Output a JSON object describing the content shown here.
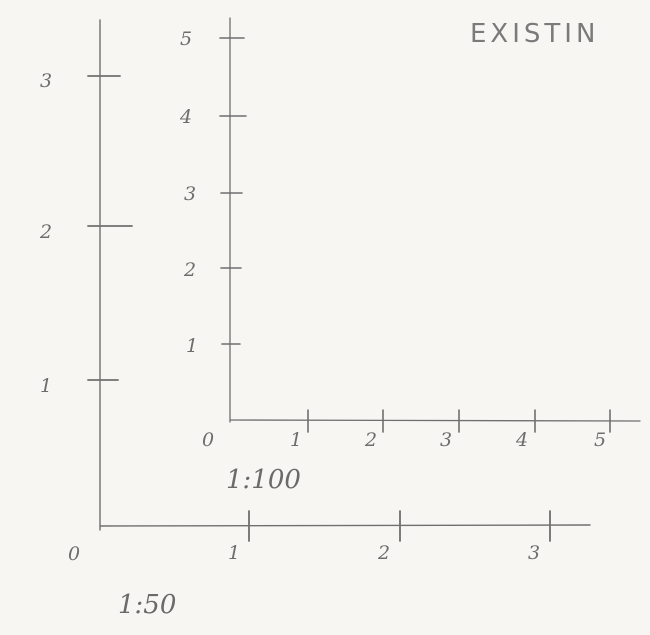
{
  "title": "EXISTIN",
  "scale_50": {
    "label": "1:50",
    "origin": "0",
    "x_ticks": [
      "1",
      "2",
      "3"
    ],
    "y_ticks": [
      "1",
      "2",
      "3"
    ]
  },
  "scale_100": {
    "label": "1:100",
    "origin": "0",
    "x_ticks": [
      "1",
      "2",
      "3",
      "4",
      "5"
    ],
    "y_ticks": [
      "1",
      "2",
      "3",
      "4",
      "5"
    ]
  },
  "colors": {
    "paper": "#f7f6f3",
    "pencil": "#6f6f6f"
  }
}
